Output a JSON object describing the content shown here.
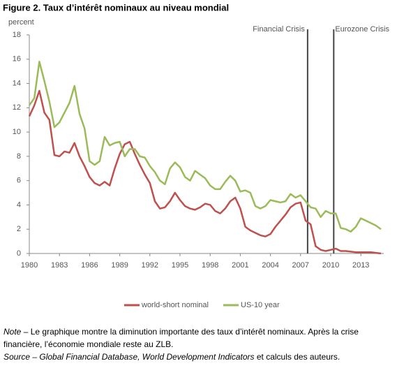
{
  "chart_data": {
    "type": "line",
    "title": "Figure 2. Taux d’intérêt nominaux au niveau mondial",
    "y_label": "percent",
    "xlim": [
      1980,
      2015
    ],
    "ylim": [
      0,
      18
    ],
    "xticks": [
      1980,
      1983,
      1986,
      1989,
      1992,
      1995,
      1998,
      2001,
      2004,
      2007,
      2010,
      2013
    ],
    "yticks": [
      0,
      2,
      4,
      6,
      8,
      10,
      12,
      14,
      16,
      18
    ],
    "grid": false,
    "legend": "bottom",
    "x": [
      1980,
      1980.5,
      1981,
      1981.5,
      1982,
      1982.5,
      1983,
      1983.5,
      1984,
      1984.5,
      1985,
      1985.5,
      1986,
      1986.5,
      1987,
      1987.5,
      1988,
      1988.5,
      1989,
      1989.5,
      1990,
      1990.5,
      1991,
      1991.5,
      1992,
      1992.5,
      1993,
      1993.5,
      1994,
      1994.5,
      1995,
      1995.5,
      1996,
      1996.5,
      1997,
      1997.5,
      1998,
      1998.5,
      1999,
      1999.5,
      2000,
      2000.5,
      2001,
      2001.5,
      2002,
      2002.5,
      2003,
      2003.5,
      2004,
      2004.5,
      2005,
      2005.5,
      2006,
      2006.5,
      2007,
      2007.5,
      2008,
      2008.5,
      2009,
      2009.5,
      2010,
      2010.5,
      2011,
      2011.5,
      2012,
      2012.5,
      2013,
      2013.5,
      2014,
      2014.5,
      2015
    ],
    "series": [
      {
        "name": "world-short nominal",
        "color": "#c0504d",
        "values": [
          11.3,
          12.2,
          13.4,
          11.6,
          11.0,
          8.1,
          8.0,
          8.4,
          8.3,
          9.1,
          8.0,
          7.2,
          6.3,
          5.8,
          5.6,
          5.9,
          5.6,
          7.0,
          8.2,
          9.0,
          9.2,
          8.2,
          7.3,
          6.5,
          5.8,
          4.3,
          3.7,
          3.8,
          4.3,
          5.0,
          4.4,
          3.9,
          3.7,
          3.6,
          3.8,
          4.1,
          4.0,
          3.5,
          3.3,
          3.7,
          4.3,
          4.6,
          3.7,
          2.2,
          1.9,
          1.7,
          1.5,
          1.4,
          1.6,
          2.2,
          2.7,
          3.2,
          3.8,
          4.1,
          4.2,
          2.7,
          2.4,
          0.6,
          0.3,
          0.2,
          0.3,
          0.4,
          0.2,
          0.2,
          0.15,
          0.1,
          0.1,
          0.1,
          0.1,
          0.05,
          0.0
        ]
      },
      {
        "name": "US-10 year",
        "color": "#9bbb59",
        "values": [
          12.2,
          12.8,
          15.8,
          14.2,
          12.5,
          10.4,
          10.8,
          11.6,
          12.4,
          13.8,
          11.5,
          10.3,
          7.6,
          7.3,
          7.6,
          9.6,
          8.9,
          9.1,
          9.2,
          8.0,
          8.6,
          8.6,
          8.0,
          7.9,
          7.2,
          6.7,
          6.0,
          5.7,
          7.0,
          7.5,
          7.1,
          6.3,
          6.0,
          6.8,
          6.5,
          6.2,
          5.6,
          5.3,
          5.3,
          5.9,
          6.4,
          6.0,
          5.1,
          5.2,
          5.0,
          3.9,
          3.7,
          3.9,
          4.4,
          4.3,
          4.2,
          4.3,
          4.9,
          4.6,
          4.8,
          4.3,
          3.8,
          3.7,
          3.0,
          3.5,
          3.3,
          3.3,
          2.1,
          2.0,
          1.8,
          2.2,
          2.9,
          2.7,
          2.5,
          2.3,
          2.0
        ]
      }
    ],
    "annotations": [
      {
        "text": "Financial Crisis",
        "x": 2007.7
      },
      {
        "text": "Eurozone Crisis",
        "x": 2010.3
      }
    ],
    "note": {
      "label": "Note",
      "text": "– Le graphique montre la diminution importante des taux d’intérêt nominaux. Après la crise financière, l’économie mondiale reste au ZLB."
    },
    "source": {
      "label": "Source – Global Financial Database, World Development Indicators",
      "text": "et calculs des auteurs."
    }
  }
}
